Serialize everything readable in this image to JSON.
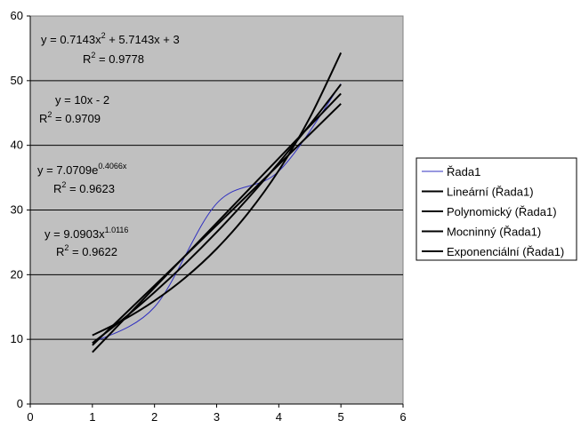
{
  "chart_data": {
    "type": "line",
    "xlim": [
      0,
      6
    ],
    "ylim": [
      0,
      60
    ],
    "xticks": [
      0,
      1,
      2,
      3,
      4,
      5,
      6
    ],
    "yticks": [
      0,
      10,
      20,
      30,
      40,
      50,
      60
    ],
    "grid": "horizontal",
    "legend_position": "right",
    "plot_background": "#c0c0c0",
    "series": [
      {
        "name": "Řada1",
        "color": "#3030c0",
        "x": [
          1,
          2,
          3,
          4,
          5
        ],
        "y": [
          9.5,
          15,
          31,
          36,
          49.5
        ]
      },
      {
        "name": "Lineární (Řada1)",
        "color": "#000000",
        "x": [
          1,
          5
        ],
        "y": [
          8,
          48
        ]
      },
      {
        "name": "Polynomický (Řada1)",
        "color": "#000000",
        "x": [
          1,
          1.5,
          2,
          2.5,
          3,
          3.5,
          4,
          4.5,
          5
        ],
        "y": [
          9.43,
          13.18,
          17.29,
          21.75,
          26.57,
          31.75,
          37.29,
          43.18,
          49.43
        ]
      },
      {
        "name": "Mocninný (Řada1)",
        "color": "#000000",
        "x": [
          1,
          1.5,
          2,
          2.5,
          3,
          3.5,
          4,
          4.5,
          5
        ],
        "y": [
          9.09,
          13.7,
          18.32,
          22.97,
          27.64,
          32.32,
          37.02,
          41.72,
          46.43
        ]
      },
      {
        "name": "Exponenciální (Řada1)",
        "color": "#000000",
        "x": [
          1,
          1.5,
          2,
          2.5,
          3,
          3.5,
          4,
          4.5,
          5
        ],
        "y": [
          10.62,
          13.02,
          15.97,
          19.58,
          24.01,
          29.45,
          36.11,
          44.29,
          54.31
        ]
      }
    ],
    "annotations": [
      {
        "text": "y = 0.7143x",
        "sup": "2",
        "rest": " + 5.7143x + 3"
      },
      {
        "text": "R",
        "sup": "2",
        "rest": " = 0.9778"
      },
      {
        "text": "y = 10x - 2",
        "sup": "",
        "rest": ""
      },
      {
        "text": "R",
        "sup": "2",
        "rest": " = 0.9709"
      },
      {
        "text": "y = 7.0709e",
        "sup": "0.4066x",
        "rest": ""
      },
      {
        "text": "R",
        "sup": "2",
        "rest": " = 0.9623"
      },
      {
        "text": "y = 9.0903x",
        "sup": "1.0116",
        "rest": ""
      },
      {
        "text": "R",
        "sup": "2",
        "rest": " = 0.9622"
      }
    ]
  }
}
